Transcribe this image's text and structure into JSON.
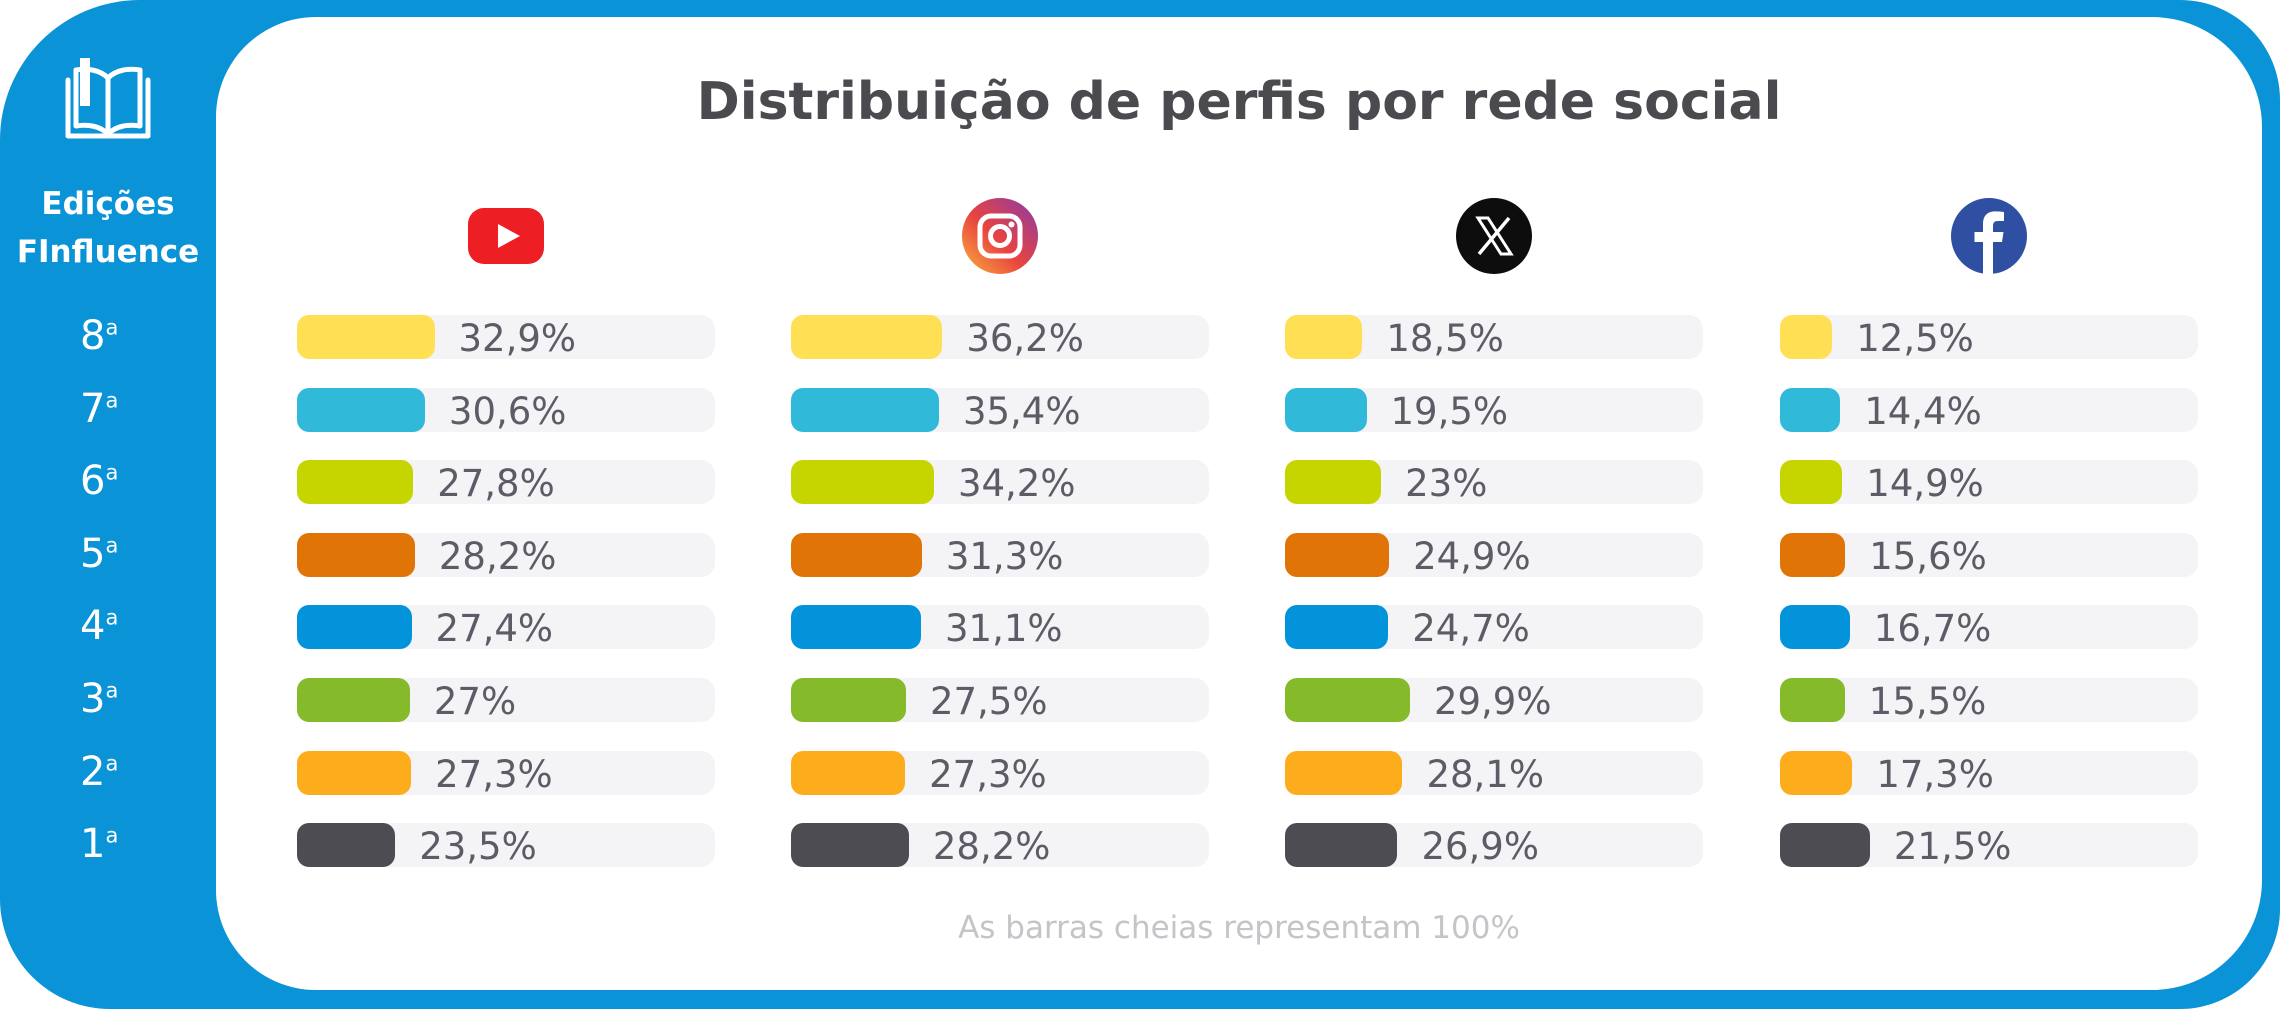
{
  "sidebar": {
    "title_line1": "Edições",
    "title_line2": "FInfluence",
    "editions": [
      {
        "num": "8",
        "sup": "a"
      },
      {
        "num": "7",
        "sup": "a"
      },
      {
        "num": "6",
        "sup": "a"
      },
      {
        "num": "5",
        "sup": "a"
      },
      {
        "num": "4",
        "sup": "a"
      },
      {
        "num": "3",
        "sup": "a"
      },
      {
        "num": "2",
        "sup": "a"
      },
      {
        "num": "1",
        "sup": "a"
      }
    ]
  },
  "colors": {
    "frame": "#0a93d6",
    "editions": [
      "#ffe055",
      "#30b9d9",
      "#c6d500",
      "#e07406",
      "#0393db",
      "#85bb2a",
      "#fdad1c",
      "#4d4c52"
    ]
  },
  "chart_data": {
    "type": "bar",
    "title": "Distribuição de perfis por rede social",
    "note": "As barras cheias representam 100%",
    "categories": [
      "8ª",
      "7ª",
      "6ª",
      "5ª",
      "4ª",
      "3ª",
      "2ª",
      "1ª"
    ],
    "xlim": [
      0,
      100
    ],
    "series": [
      {
        "icon": "youtube-icon",
        "values": [
          32.9,
          30.6,
          27.8,
          28.2,
          27.4,
          27,
          27.3,
          23.5
        ],
        "labels": [
          "32,9%",
          "30,6%",
          "27,8%",
          "28,2%",
          "27,4%",
          "27%",
          "27,3%",
          "23,5%"
        ]
      },
      {
        "icon": "instagram-icon",
        "values": [
          36.2,
          35.4,
          34.2,
          31.3,
          31.1,
          27.5,
          27.3,
          28.2
        ],
        "labels": [
          "36,2%",
          "35,4%",
          "34,2%",
          "31,3%",
          "31,1%",
          "27,5%",
          "27,3%",
          "28,2%"
        ]
      },
      {
        "icon": "x-icon",
        "values": [
          18.5,
          19.5,
          23,
          24.9,
          24.7,
          29.9,
          28.1,
          26.9
        ],
        "labels": [
          "18,5%",
          "19,5%",
          "23%",
          "24,9%",
          "24,7%",
          "29,9%",
          "28,1%",
          "26,9%"
        ]
      },
      {
        "icon": "facebook-icon",
        "values": [
          12.5,
          14.4,
          14.9,
          15.6,
          16.7,
          15.5,
          17.3,
          21.5
        ],
        "labels": [
          "12,5%",
          "14,4%",
          "14,9%",
          "15,6%",
          "16,7%",
          "15,5%",
          "17,3%",
          "21,5%"
        ]
      }
    ]
  }
}
